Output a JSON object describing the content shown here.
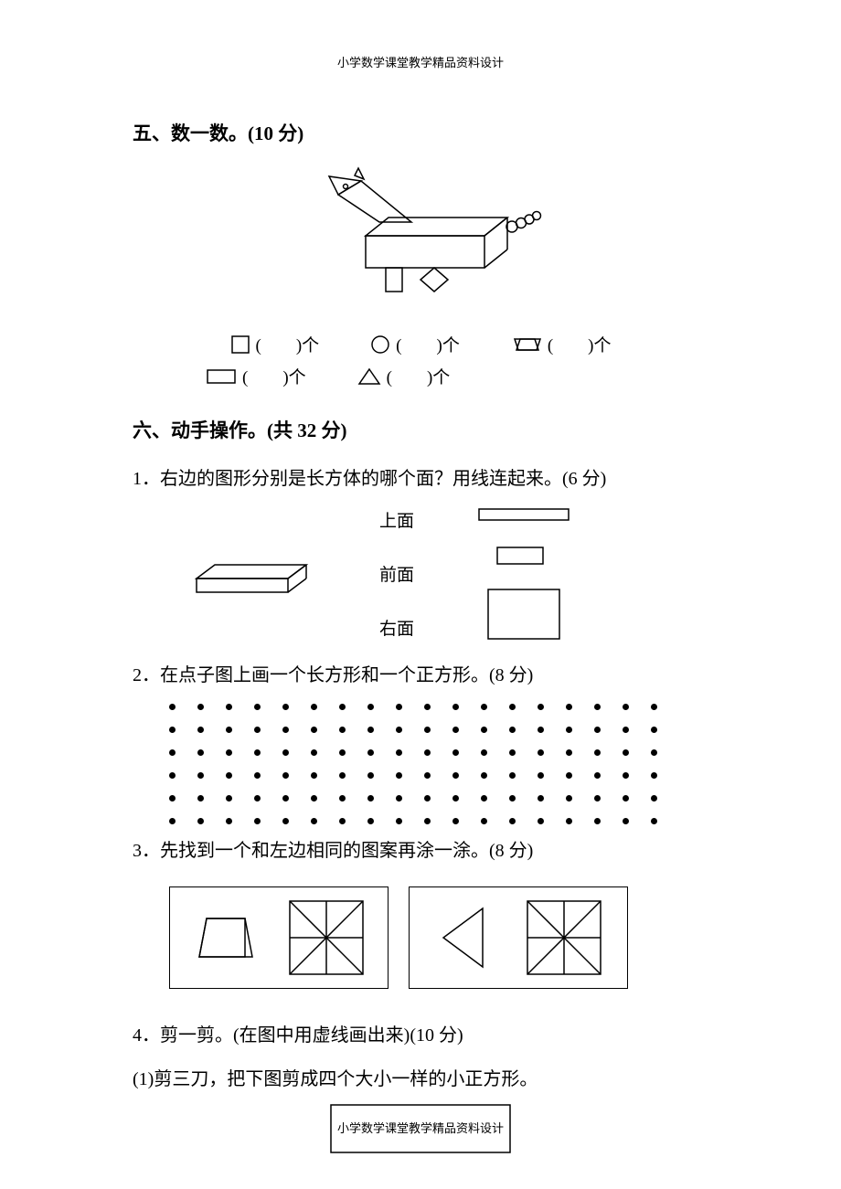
{
  "header_text": "小学数学课堂教学精品资料设计",
  "footer_text": "小学数学课堂教学精品资料设计",
  "section5": {
    "title": "五、数一数。(10 分)",
    "items": [
      {
        "suffix": "(　　)个"
      },
      {
        "suffix": "(　　)个"
      },
      {
        "suffix": "(　　)个"
      },
      {
        "suffix": "(　　)个"
      },
      {
        "suffix": "(　　)个"
      }
    ]
  },
  "section6": {
    "title": "六、动手操作。(共 32 分)",
    "q1": {
      "text": "1．右边的图形分别是长方体的哪个面？用线连起来。(6 分)",
      "labels": [
        "上面",
        "前面",
        "右面"
      ]
    },
    "q2": {
      "text": "2．在点子图上画一个长方形和一个正方形。(8 分)",
      "rows": 6,
      "cols": 18
    },
    "q3": {
      "text": "3．先找到一个和左边相同的图案再涂一涂。(8 分)"
    },
    "q4": {
      "text": "4．剪一剪。(在图中用虚线画出来)(10 分)",
      "sub1": "(1)剪三刀，把下图剪成四个大小一样的小正方形。"
    }
  },
  "colors": {
    "stroke": "#000000",
    "bg": "#ffffff"
  }
}
